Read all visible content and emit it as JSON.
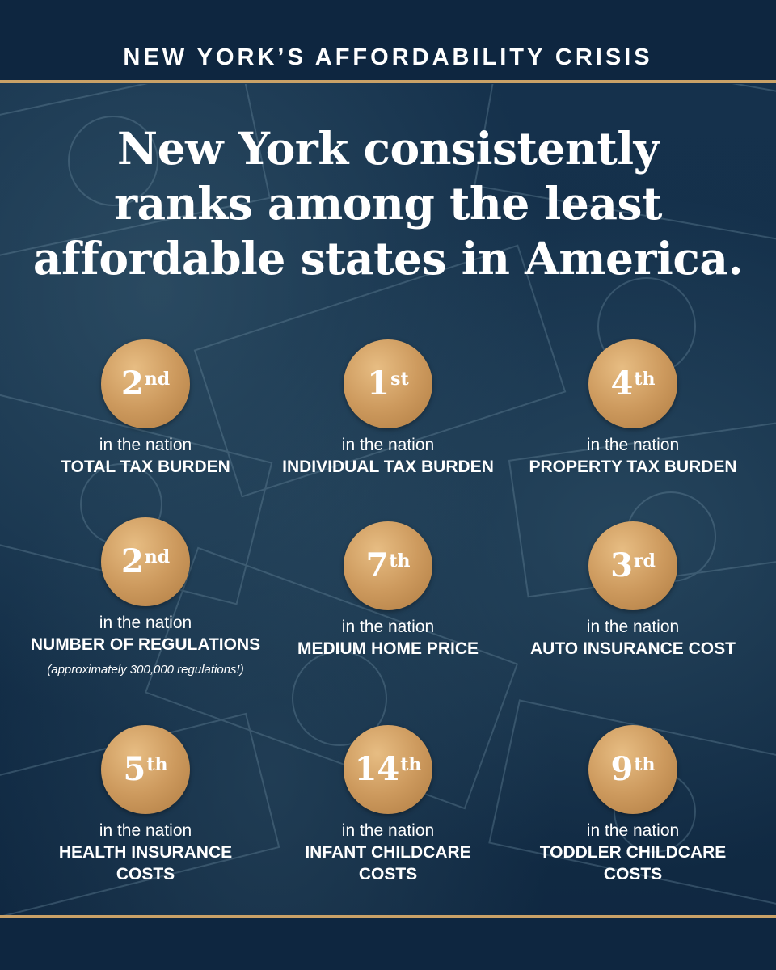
{
  "header": {
    "title": "NEW YORK’S AFFORDABILITY CRISIS"
  },
  "headline": {
    "line1": "New York consistently",
    "line2": "ranks among the least",
    "line3": "affordable states in America."
  },
  "common": {
    "in_the_nation": "in the nation"
  },
  "colors": {
    "navy": "#0f2740",
    "gold": "#c9a167"
  },
  "stats": [
    {
      "rank_num": "2",
      "rank_suffix": "nd",
      "label": "TOTAL TAX BURDEN"
    },
    {
      "rank_num": "1",
      "rank_suffix": "st",
      "label": "INDIVIDUAL TAX BURDEN"
    },
    {
      "rank_num": "4",
      "rank_suffix": "th",
      "label": "PROPERTY TAX BURDEN"
    },
    {
      "rank_num": "2",
      "rank_suffix": "nd",
      "label": "NUMBER OF REGULATIONS",
      "note": "(approximately 300,000 regulations!)"
    },
    {
      "rank_num": "7",
      "rank_suffix": "th",
      "label": "MEDIUM HOME PRICE"
    },
    {
      "rank_num": "3",
      "rank_suffix": "rd",
      "label": "AUTO INSURANCE COST"
    },
    {
      "rank_num": "5",
      "rank_suffix": "th",
      "label_line1": "HEALTH INSURANCE",
      "label_line2": "COSTS"
    },
    {
      "rank_num": "14",
      "rank_suffix": "th",
      "label_line1": "INFANT CHILDCARE",
      "label_line2": "COSTS"
    },
    {
      "rank_num": "9",
      "rank_suffix": "th",
      "label_line1": "TODDLER CHILDCARE",
      "label_line2": "COSTS"
    }
  ]
}
